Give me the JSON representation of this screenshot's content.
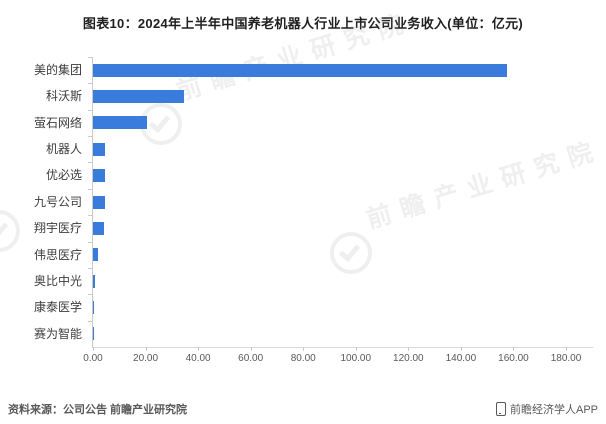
{
  "title": "图表10：2024年上半年中国养老机器人行业上市公司业务收入(单位：亿元)",
  "chart_data": {
    "type": "bar",
    "orientation": "horizontal",
    "title": "图表10：2024年上半年中国养老机器人行业上市公司业务收入(单位：亿元)",
    "unit": "亿元",
    "categories": [
      "美的集团",
      "科沃斯",
      "萤石网络",
      "机器人",
      "优必选",
      "九号公司",
      "翔宇医疗",
      "伟思医疗",
      "奥比中光",
      "康泰医学",
      "赛为智能"
    ],
    "values": [
      157.6,
      34.6,
      20.6,
      4.4,
      4.6,
      4.6,
      4.1,
      2.0,
      0.8,
      0.3,
      0.1
    ],
    "xlim": [
      0,
      180
    ],
    "x_ticks": [
      "0.00",
      "20.00",
      "40.00",
      "60.00",
      "80.00",
      "100.00",
      "120.00",
      "140.00",
      "160.00",
      "180.00"
    ],
    "x_tick_step": 20,
    "bar_color": "#3a7cdb",
    "grid": false,
    "legend": false
  },
  "watermark": {
    "text": "前瞻产业研究院"
  },
  "footer": {
    "source": "资料来源：公司公告 前瞻产业研究院",
    "brand": "前瞻经济学人APP"
  }
}
